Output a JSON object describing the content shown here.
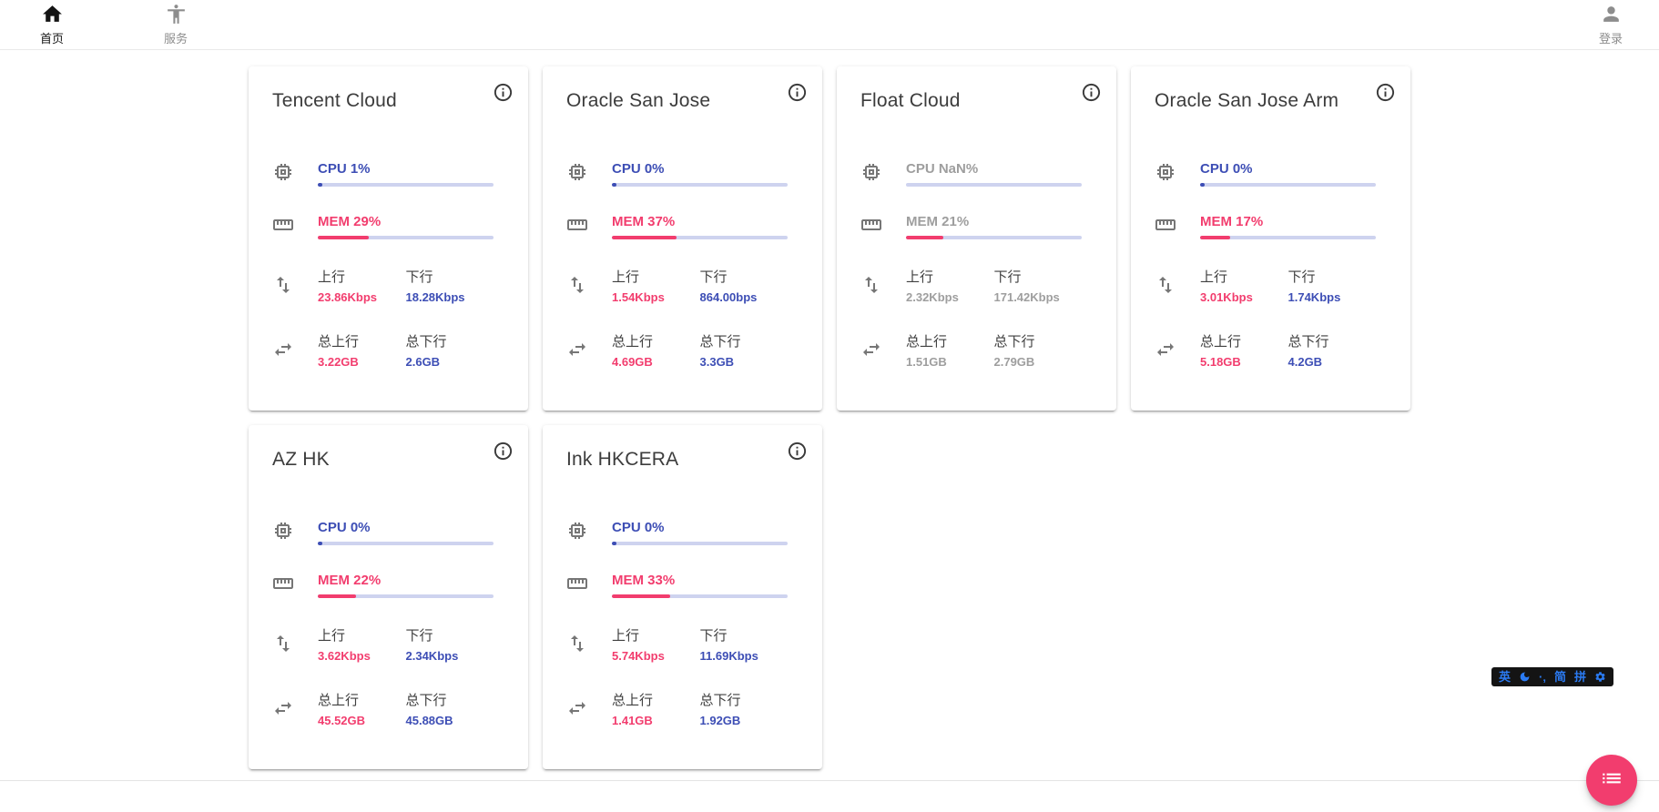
{
  "nav": {
    "home": {
      "label": "首页"
    },
    "services": {
      "label": "服务"
    },
    "login": {
      "label": "登录"
    }
  },
  "labels": {
    "up": "上行",
    "down": "下行",
    "total_up": "总上行",
    "total_down": "总下行"
  },
  "colors": {
    "pink": "#f23d6e",
    "blue": "#3d4eb5",
    "bar_track": "#ced3ef",
    "offline_gray": "#9e9e9e",
    "ime_blue": "#2b7bf3"
  },
  "servers": [
    {
      "name": "Tencent Cloud",
      "cpu_text": "CPU 1%",
      "cpu_pct": 1,
      "mem_text": "MEM 29%",
      "mem_pct": 29,
      "up": "23.86Kbps",
      "down": "18.28Kbps",
      "total_up": "3.22GB",
      "total_down": "2.6GB",
      "offline": false
    },
    {
      "name": "Oracle San Jose",
      "cpu_text": "CPU 0%",
      "cpu_pct": 0,
      "mem_text": "MEM 37%",
      "mem_pct": 37,
      "up": "1.54Kbps",
      "down": "864.00bps",
      "total_up": "4.69GB",
      "total_down": "3.3GB",
      "offline": false
    },
    {
      "name": "Float Cloud",
      "cpu_text": "CPU NaN%",
      "cpu_pct": null,
      "mem_text": "MEM 21%",
      "mem_pct": 21,
      "up": "2.32Kbps",
      "down": "171.42Kbps",
      "total_up": "1.51GB",
      "total_down": "2.79GB",
      "offline": true
    },
    {
      "name": "Oracle San Jose Arm",
      "cpu_text": "CPU 0%",
      "cpu_pct": 0,
      "mem_text": "MEM 17%",
      "mem_pct": 17,
      "up": "3.01Kbps",
      "down": "1.74Kbps",
      "total_up": "5.18GB",
      "total_down": "4.2GB",
      "offline": false
    },
    {
      "name": "AZ HK",
      "cpu_text": "CPU 0%",
      "cpu_pct": 0,
      "mem_text": "MEM 22%",
      "mem_pct": 22,
      "up": "3.62Kbps",
      "down": "2.34Kbps",
      "total_up": "45.52GB",
      "total_down": "45.88GB",
      "offline": false
    },
    {
      "name": "Ink HKCERA",
      "cpu_text": "CPU 0%",
      "cpu_pct": 0,
      "mem_text": "MEM 33%",
      "mem_pct": 33,
      "up": "5.74Kbps",
      "down": "11.69Kbps",
      "total_up": "1.41GB",
      "total_down": "1.92GB",
      "offline": false
    }
  ],
  "ime": {
    "english": "英",
    "punctuation": "·‚",
    "simplified": "简",
    "pinyin": "拼"
  }
}
